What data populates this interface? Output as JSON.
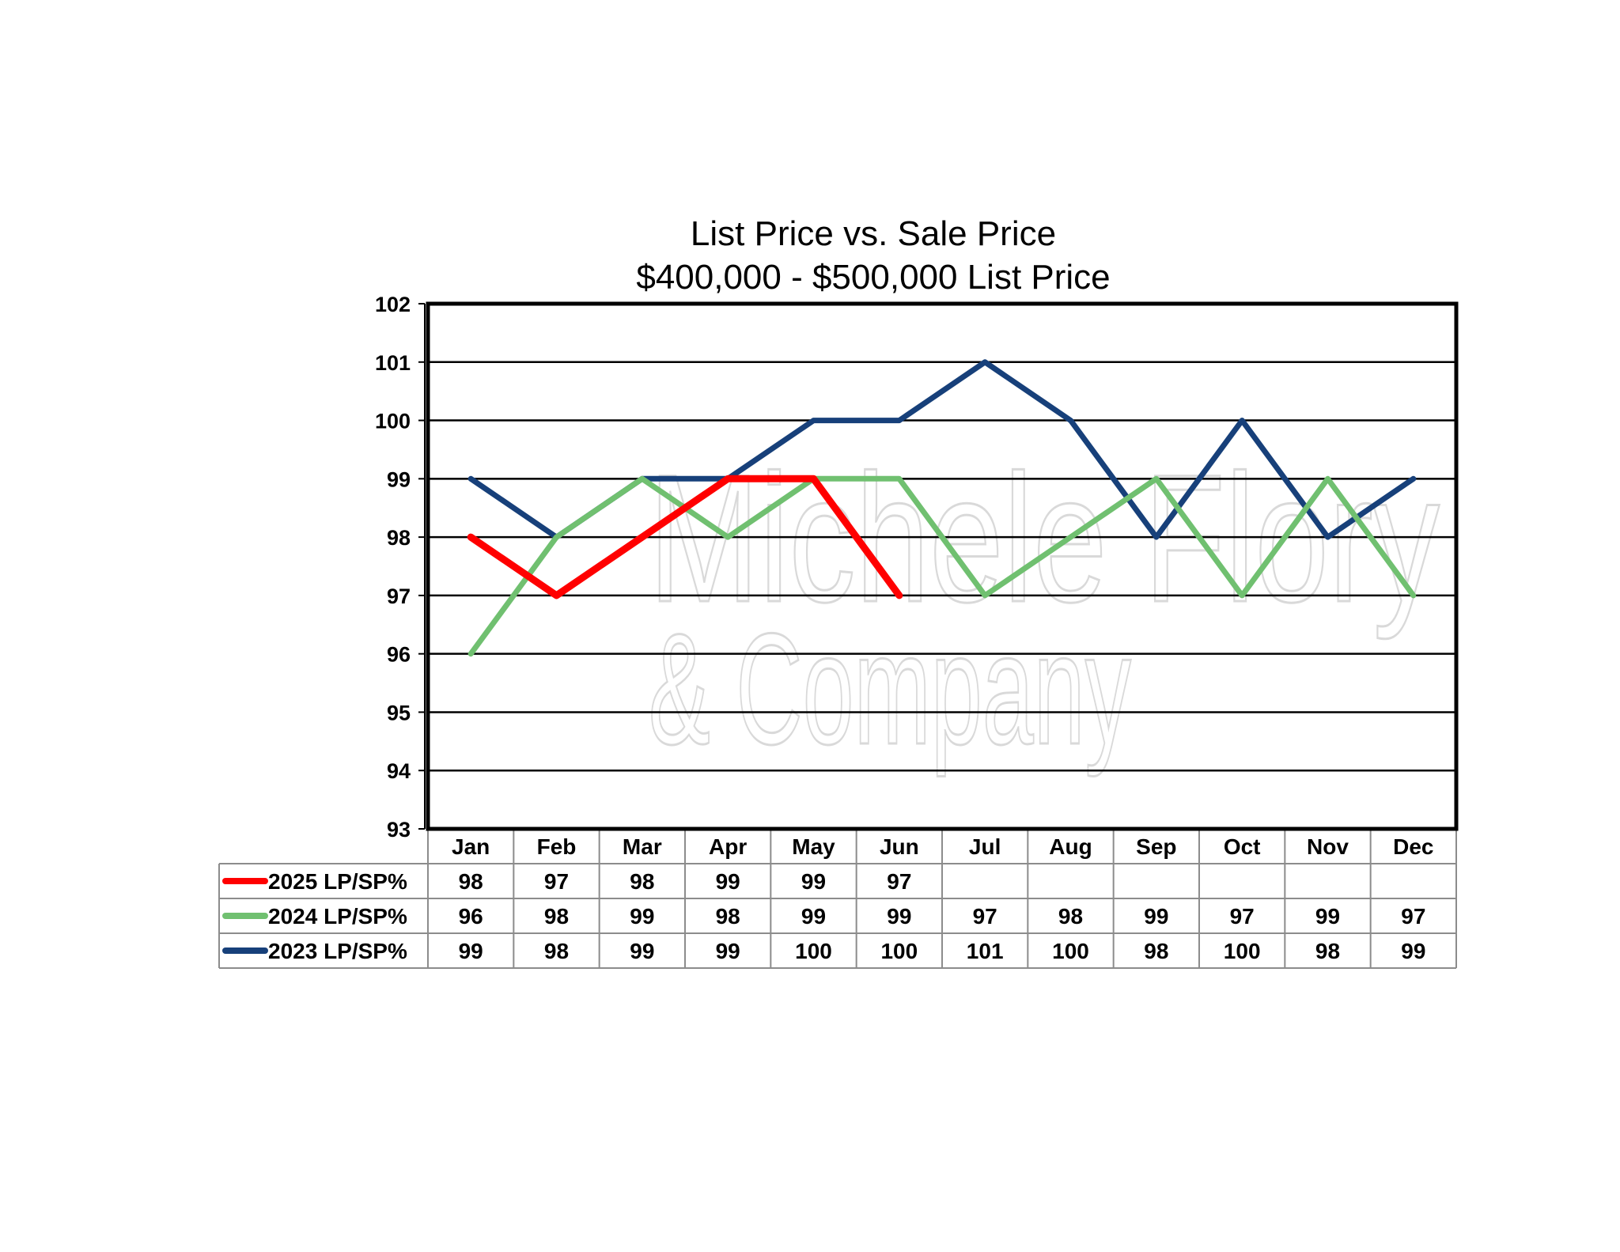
{
  "chart_data": {
    "type": "line",
    "title": "List Price vs. Sale Price",
    "subtitle": "$400,000 - $500,000  List Price",
    "categories": [
      "Jan",
      "Feb",
      "Mar",
      "Apr",
      "May",
      "Jun",
      "Jul",
      "Aug",
      "Sep",
      "Oct",
      "Nov",
      "Dec"
    ],
    "ylim": [
      93,
      102
    ],
    "yticks": [
      93,
      94,
      95,
      96,
      97,
      98,
      99,
      100,
      101,
      102
    ],
    "grid": true,
    "legend_placement": "data-table-left",
    "series": [
      {
        "name": "2025 LP/SP%",
        "color": "#ff0000",
        "values": [
          98,
          97,
          98,
          99,
          99,
          97,
          null,
          null,
          null,
          null,
          null,
          null
        ]
      },
      {
        "name": "2024 LP/SP%",
        "color": "#70c070",
        "values": [
          96,
          98,
          99,
          98,
          99,
          99,
          97,
          98,
          99,
          97,
          99,
          97
        ]
      },
      {
        "name": "2023 LP/SP%",
        "color": "#17407a",
        "values": [
          99,
          98,
          99,
          99,
          100,
          100,
          101,
          100,
          98,
          100,
          98,
          99
        ]
      }
    ]
  },
  "watermark": {
    "line1": "Michele Flory",
    "line2": "& Company"
  }
}
